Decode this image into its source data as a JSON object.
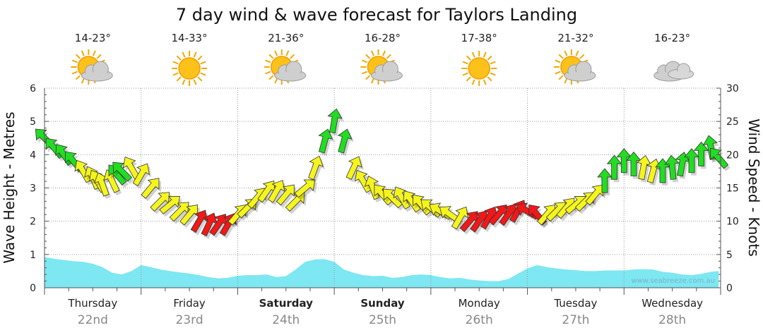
{
  "title": "7 day wind & wave forecast for Taylors Landing",
  "watermark": "www.seabreeze.com.au",
  "days": [
    {
      "name": "Thursday",
      "date": "22nd",
      "temp": "14-23°",
      "weather_icon": "partly-cloudy-icon",
      "bold": false
    },
    {
      "name": "Friday",
      "date": "23rd",
      "temp": "14-33°",
      "weather_icon": "sunny-icon",
      "bold": false
    },
    {
      "name": "Saturday",
      "date": "24th",
      "temp": "21-36°",
      "weather_icon": "partly-cloudy-icon",
      "bold": true
    },
    {
      "name": "Sunday",
      "date": "25th",
      "temp": "16-28°",
      "weather_icon": "partly-cloudy-icon",
      "bold": true
    },
    {
      "name": "Monday",
      "date": "26th",
      "temp": "17-38°",
      "weather_icon": "sunny-icon",
      "bold": false
    },
    {
      "name": "Tuesday",
      "date": "27th",
      "temp": "21-32°",
      "weather_icon": "partly-cloudy-icon",
      "bold": false
    },
    {
      "name": "Wednesday",
      "date": "28th",
      "temp": "16-23°",
      "weather_icon": "cloudy-icon",
      "bold": false
    }
  ],
  "colors": {
    "wave_fill": "#7de7f2",
    "wind_green": "#22dd22",
    "wind_yellow": "#f5f51e",
    "wind_red": "#f01818",
    "grid": "#9a9a9a"
  },
  "chart_data": {
    "type": "line",
    "xlabel": "",
    "ylabel": "Wave Height - Metres",
    "y2label": "Wind Speed - Knots",
    "ylim": [
      0,
      6
    ],
    "y2lim": [
      0,
      30
    ],
    "yticks": [
      "0",
      "1",
      "2",
      "3",
      "4",
      "5",
      "6"
    ],
    "y2ticks": [
      "0",
      "5",
      "10",
      "15",
      "20",
      "25",
      "30"
    ],
    "x_unit": "day",
    "grid": true,
    "series": [
      {
        "name": "Wave Height - Metres",
        "axis": "left",
        "style": "area",
        "x": [
          0,
          0.15,
          0.3,
          0.4,
          0.5,
          0.6,
          0.7,
          0.8,
          0.9,
          1.0,
          1.1,
          1.2,
          1.3,
          1.4,
          1.5,
          1.6,
          1.7,
          1.8,
          1.9,
          2.0,
          2.1,
          2.2,
          2.3,
          2.4,
          2.5,
          2.6,
          2.7,
          2.8,
          2.9,
          3.0,
          3.1,
          3.2,
          3.3,
          3.4,
          3.5,
          3.6,
          3.7,
          3.8,
          3.9,
          4.0,
          4.1,
          4.2,
          4.3,
          4.4,
          4.5,
          4.6,
          4.7,
          4.8,
          4.9,
          5.0,
          5.1,
          5.2,
          5.3,
          5.4,
          5.5,
          5.6,
          5.7,
          5.8,
          5.9,
          6.0,
          6.1,
          6.2,
          6.3,
          6.4,
          6.5,
          6.6,
          6.7,
          6.8,
          6.9,
          6.98
        ],
        "values": [
          0.92,
          0.85,
          0.8,
          0.78,
          0.72,
          0.62,
          0.45,
          0.4,
          0.5,
          0.68,
          0.62,
          0.55,
          0.5,
          0.46,
          0.43,
          0.38,
          0.32,
          0.28,
          0.3,
          0.36,
          0.38,
          0.38,
          0.4,
          0.32,
          0.35,
          0.55,
          0.78,
          0.85,
          0.86,
          0.78,
          0.55,
          0.45,
          0.38,
          0.35,
          0.36,
          0.3,
          0.32,
          0.38,
          0.4,
          0.38,
          0.32,
          0.28,
          0.3,
          0.25,
          0.22,
          0.2,
          0.2,
          0.26,
          0.42,
          0.58,
          0.68,
          0.62,
          0.58,
          0.55,
          0.53,
          0.5,
          0.5,
          0.52,
          0.52,
          0.52,
          0.55,
          0.56,
          0.55,
          0.48,
          0.45,
          0.4,
          0.38,
          0.42,
          0.48,
          0.5
        ]
      },
      {
        "name": "Wind Speed - Knots",
        "axis": "right",
        "style": "arrows",
        "x": [
          0.0,
          0.1,
          0.2,
          0.3,
          0.4,
          0.5,
          0.55,
          0.6,
          0.7,
          0.75,
          0.8,
          0.9,
          1.0,
          1.1,
          1.2,
          1.3,
          1.4,
          1.5,
          1.6,
          1.7,
          1.8,
          1.9,
          2.0,
          2.1,
          2.2,
          2.3,
          2.4,
          2.5,
          2.6,
          2.7,
          2.8,
          2.9,
          3.0,
          3.1,
          3.2,
          3.3,
          3.4,
          3.5,
          3.6,
          3.7,
          3.8,
          3.9,
          4.0,
          4.1,
          4.2,
          4.3,
          4.4,
          4.5,
          4.6,
          4.7,
          4.8,
          4.9,
          5.0,
          5.1,
          5.2,
          5.3,
          5.4,
          5.5,
          5.6,
          5.7,
          5.8,
          5.9,
          6.0,
          6.1,
          6.2,
          6.3,
          6.4,
          6.5,
          6.6,
          6.7,
          6.8,
          6.9,
          6.98
        ],
        "values": [
          22.5,
          21,
          20,
          19,
          17.5,
          16.5,
          16,
          15.5,
          16,
          17,
          17.5,
          18,
          17,
          15,
          13,
          12.5,
          11.5,
          11,
          10,
          9.5,
          9.5,
          9.5,
          11,
          12,
          13.5,
          14.5,
          14.5,
          14,
          13,
          15,
          18,
          22,
          25,
          22,
          18,
          16,
          15,
          14,
          13.5,
          13.5,
          13,
          12.5,
          12,
          11.5,
          11,
          10.5,
          10,
          10,
          10.5,
          11,
          11,
          11.5,
          11.5,
          11,
          11,
          11.5,
          12,
          12.5,
          13,
          14,
          16,
          18,
          19,
          18.5,
          18,
          17.5,
          17.5,
          18,
          18.5,
          19,
          20,
          21,
          19.5
        ],
        "colors": [
          "green",
          "green",
          "green",
          "green",
          "yellow",
          "yellow",
          "yellow",
          "yellow",
          "yellow",
          "green",
          "green",
          "yellow",
          "yellow",
          "yellow",
          "yellow",
          "yellow",
          "yellow",
          "yellow",
          "red",
          "red",
          "red",
          "red",
          "yellow",
          "yellow",
          "yellow",
          "yellow",
          "yellow",
          "yellow",
          "yellow",
          "yellow",
          "yellow",
          "green",
          "green",
          "green",
          "yellow",
          "yellow",
          "yellow",
          "yellow",
          "yellow",
          "yellow",
          "yellow",
          "yellow",
          "yellow",
          "yellow",
          "yellow",
          "yellow",
          "red",
          "red",
          "red",
          "red",
          "red",
          "red",
          "red",
          "red",
          "yellow",
          "yellow",
          "yellow",
          "yellow",
          "yellow",
          "yellow",
          "green",
          "green",
          "green",
          "green",
          "yellow",
          "yellow",
          "green",
          "green",
          "green",
          "green",
          "green",
          "green",
          "green"
        ],
        "directions_deg": [
          315,
          320,
          325,
          320,
          330,
          335,
          330,
          340,
          335,
          320,
          315,
          330,
          30,
          40,
          45,
          50,
          45,
          40,
          30,
          25,
          35,
          30,
          40,
          45,
          40,
          35,
          30,
          40,
          45,
          50,
          20,
          15,
          10,
          15,
          25,
          330,
          340,
          320,
          315,
          330,
          325,
          320,
          310,
          300,
          305,
          30,
          40,
          35,
          30,
          40,
          35,
          30,
          300,
          320,
          40,
          45,
          40,
          50,
          45,
          40,
          0,
          0,
          0,
          0,
          10,
          15,
          0,
          355,
          10,
          0,
          0,
          350,
          320
        ]
      }
    ]
  }
}
